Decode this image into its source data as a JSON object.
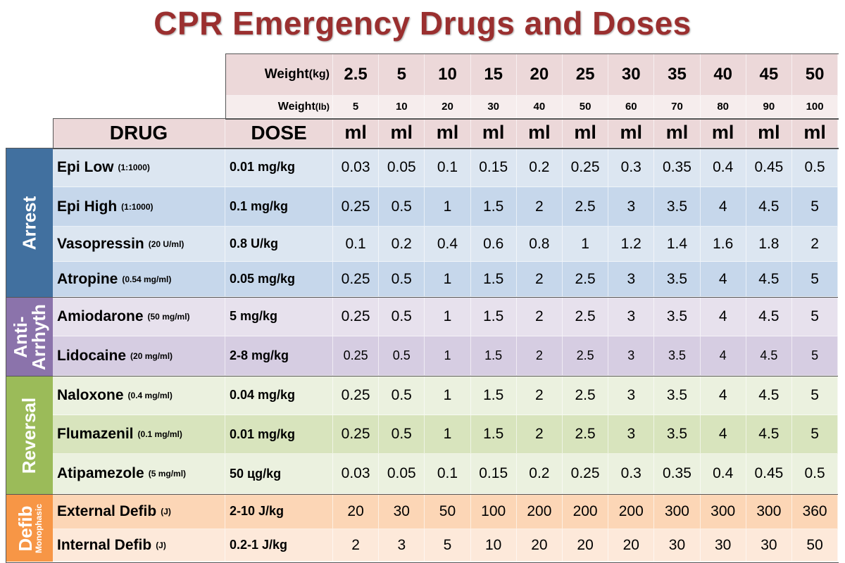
{
  "title": "CPR Emergency Drugs and Doses",
  "header": {
    "weight_kg_label": "Weight",
    "weight_kg_unit": "(kg)",
    "weight_lb_label": "Weight",
    "weight_lb_unit": "(lb)",
    "drug_label": "DRUG",
    "dose_label": "DOSE",
    "weights_kg": [
      "2.5",
      "5",
      "10",
      "15",
      "20",
      "25",
      "30",
      "35",
      "40",
      "45",
      "50"
    ],
    "weights_lb": [
      "5",
      "10",
      "20",
      "30",
      "40",
      "50",
      "60",
      "70",
      "80",
      "90",
      "100"
    ],
    "unit_ml": "ml"
  },
  "colors": {
    "title": "#9a2f2f",
    "header_pink": "#ecd8d9",
    "header_light": "#f6eded",
    "arrest": "#41709f",
    "anti_arrhythmic": "#8b73ab",
    "reversal": "#9bbb59",
    "defib": "#f79646"
  },
  "groups": [
    {
      "label": "Arrest",
      "sublabel": "",
      "color": "#41709f",
      "row_colors": [
        "#dce6f1",
        "#c6d7eb"
      ],
      "rows": [
        {
          "drug": "Epi Low",
          "conc": "(1:1000)",
          "dose": "0.01 mg/kg",
          "values": [
            "0.03",
            "0.05",
            "0.1",
            "0.15",
            "0.2",
            "0.25",
            "0.3",
            "0.35",
            "0.4",
            "0.45",
            "0.5"
          ]
        },
        {
          "drug": "Epi High",
          "conc": "(1:1000)",
          "dose": "0.1 mg/kg",
          "values": [
            "0.25",
            "0.5",
            "1",
            "1.5",
            "2",
            "2.5",
            "3",
            "3.5",
            "4",
            "4.5",
            "5"
          ]
        },
        {
          "drug": "Vasopressin",
          "conc": "(20 U/ml)",
          "dose": "0.8 U/kg",
          "values": [
            "0.1",
            "0.2",
            "0.4",
            "0.6",
            "0.8",
            "1",
            "1.2",
            "1.4",
            "1.6",
            "1.8",
            "2"
          ]
        },
        {
          "drug": "Atropine",
          "conc": "(0.54 mg/ml)",
          "dose": "0.05 mg/kg",
          "values": [
            "0.25",
            "0.5",
            "1",
            "1.5",
            "2",
            "2.5",
            "3",
            "3.5",
            "4",
            "4.5",
            "5"
          ]
        }
      ]
    },
    {
      "label": "Anti-",
      "label2": "Arrhyth",
      "sublabel": "",
      "color": "#8b73ab",
      "row_colors": [
        "#e7e1ed",
        "#d6cde2"
      ],
      "rows": [
        {
          "drug": "Amiodarone",
          "conc": "(50 mg/ml)",
          "dose": "5 mg/kg",
          "values": [
            "0.25",
            "0.5",
            "1",
            "1.5",
            "2",
            "2.5",
            "3",
            "3.5",
            "4",
            "4.5",
            "5"
          ]
        },
        {
          "drug": "Lidocaine",
          "conc": "(20 mg/ml)",
          "dose": "2-8 mg/kg",
          "values": [
            "0.25",
            "0.5",
            "1",
            "1.5",
            "2",
            "2.5",
            "3",
            "3.5",
            "4",
            "4.5",
            "5"
          ]
        }
      ]
    },
    {
      "label": "Reversal",
      "sublabel": "",
      "color": "#9bbb59",
      "row_colors": [
        "#ebf1df",
        "#d8e4bd"
      ],
      "rows": [
        {
          "drug": "Naloxone",
          "conc": "(0.4 mg/ml)",
          "dose": "0.04 mg/kg",
          "values": [
            "0.25",
            "0.5",
            "1",
            "1.5",
            "2",
            "2.5",
            "3",
            "3.5",
            "4",
            "4.5",
            "5"
          ]
        },
        {
          "drug": "Flumazenil",
          "conc": "(0.1 mg/ml)",
          "dose": "0.01 mg/kg",
          "values": [
            "0.25",
            "0.5",
            "1",
            "1.5",
            "2",
            "2.5",
            "3",
            "3.5",
            "4",
            "4.5",
            "5"
          ]
        },
        {
          "drug": "Atipamezole",
          "conc": "(5 mg/ml)",
          "dose": "50 цg/kg",
          "values": [
            "0.03",
            "0.05",
            "0.1",
            "0.15",
            "0.2",
            "0.25",
            "0.3",
            "0.35",
            "0.4",
            "0.45",
            "0.5"
          ]
        }
      ]
    },
    {
      "label": "Defib",
      "sublabel": "Monophasic",
      "color": "#f79646",
      "row_colors": [
        "#fcd6b6",
        "#fde9da"
      ],
      "rows": [
        {
          "drug": "External Defib",
          "conc": "(J)",
          "dose": "2-10 J/kg",
          "values": [
            "20",
            "30",
            "50",
            "100",
            "200",
            "200",
            "200",
            "300",
            "300",
            "300",
            "360"
          ]
        },
        {
          "drug": "Internal Defib",
          "conc": "(J)",
          "dose": "0.2-1 J/kg",
          "values": [
            "2",
            "3",
            "5",
            "10",
            "20",
            "20",
            "20",
            "30",
            "30",
            "30",
            "50"
          ]
        }
      ]
    }
  ]
}
